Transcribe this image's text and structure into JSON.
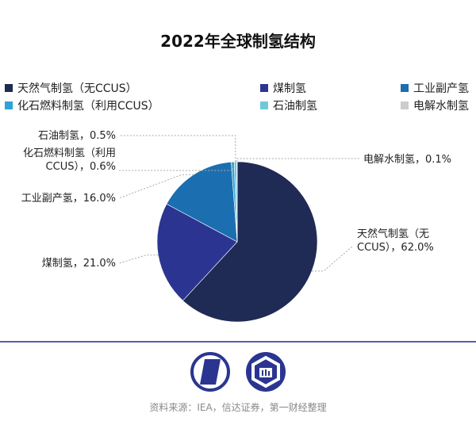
{
  "chart_data": {
    "type": "pie",
    "title": "2022年全球制氢结构",
    "legend_position": "top",
    "slices": [
      {
        "name": "天然气制氢（无CCUS）",
        "value": 62.0,
        "label": [
          "天然气制氢（无",
          "CCUS），62.0%"
        ],
        "color": "#1f2a55"
      },
      {
        "name": "煤制氢",
        "value": 21.0,
        "label": [
          "煤制氢，21.0%"
        ],
        "color": "#2b3591"
      },
      {
        "name": "工业副产氢",
        "value": 16.0,
        "label": [
          "工业副产氢，16.0%"
        ],
        "color": "#1b6fb0"
      },
      {
        "name": "化石燃料制氢（利用CCUS）",
        "value": 0.6,
        "label": [
          "化石燃料制氢（利用",
          "CCUS），0.6%"
        ],
        "color": "#2fa3d8"
      },
      {
        "name": "石油制氢",
        "value": 0.5,
        "label": [
          "石油制氢，0.5%"
        ],
        "color": "#6ec8d8"
      },
      {
        "name": "电解水制氢",
        "value": 0.1,
        "label": [
          "电解水制氢，0.1%"
        ],
        "color": "#cccccc"
      }
    ]
  },
  "footer": {
    "source": "资料来源：IEA，信达证券，第一财经整理"
  }
}
